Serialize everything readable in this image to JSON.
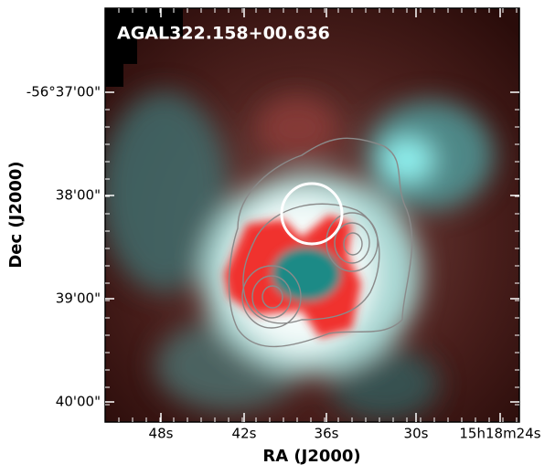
{
  "image_label": "AGAL322.158+00.636",
  "axes": {
    "x_label": "RA (J2000)",
    "y_label": "Dec (J2000)",
    "x_ticks": [
      "48s",
      "42s",
      "36s",
      "30s",
      "15h18m24s"
    ],
    "y_ticks": [
      "-56°37'00\"",
      "38'00\"",
      "39'00\"",
      "40'00\""
    ]
  }
}
